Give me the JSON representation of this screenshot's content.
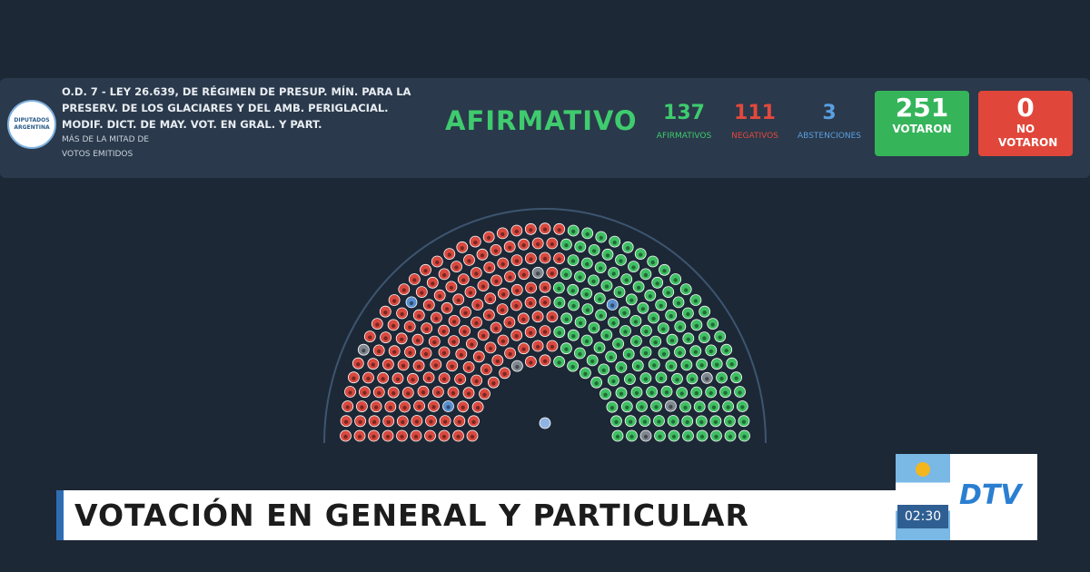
{
  "header": {
    "logo_top": "DIPUTADOS",
    "logo_bottom": "ARGENTINA",
    "title": "O.D. 7 - LEY 26.639, DE RÉGIMEN DE PRESUP. MÍN. PARA LA PRESERV. DE LOS GLACIARES Y DEL AMB. PERIGLACIAL. MODIF. DICT. DE MAY. VOT. EN GRAL. Y PART.",
    "majority_line1": "MÁS DE LA MITAD DE",
    "majority_line2": "VOTOS EMITIDOS",
    "result": "AFIRMATIVO"
  },
  "counts": [
    {
      "value": "137",
      "label": "AFIRMATIVOS"
    },
    {
      "value": "111",
      "label": "NEGATIVOS"
    },
    {
      "value": "3",
      "label": "ABSTENCIONES"
    }
  ],
  "totals": [
    {
      "value": "251",
      "label": "VOTARON"
    },
    {
      "value": "0",
      "label": "NO VOTARON"
    }
  ],
  "lower_third": {
    "title": "VOTACIÓN EN GENERAL Y PARTICULAR",
    "clock": "02:30",
    "channel": "DTV"
  }
}
